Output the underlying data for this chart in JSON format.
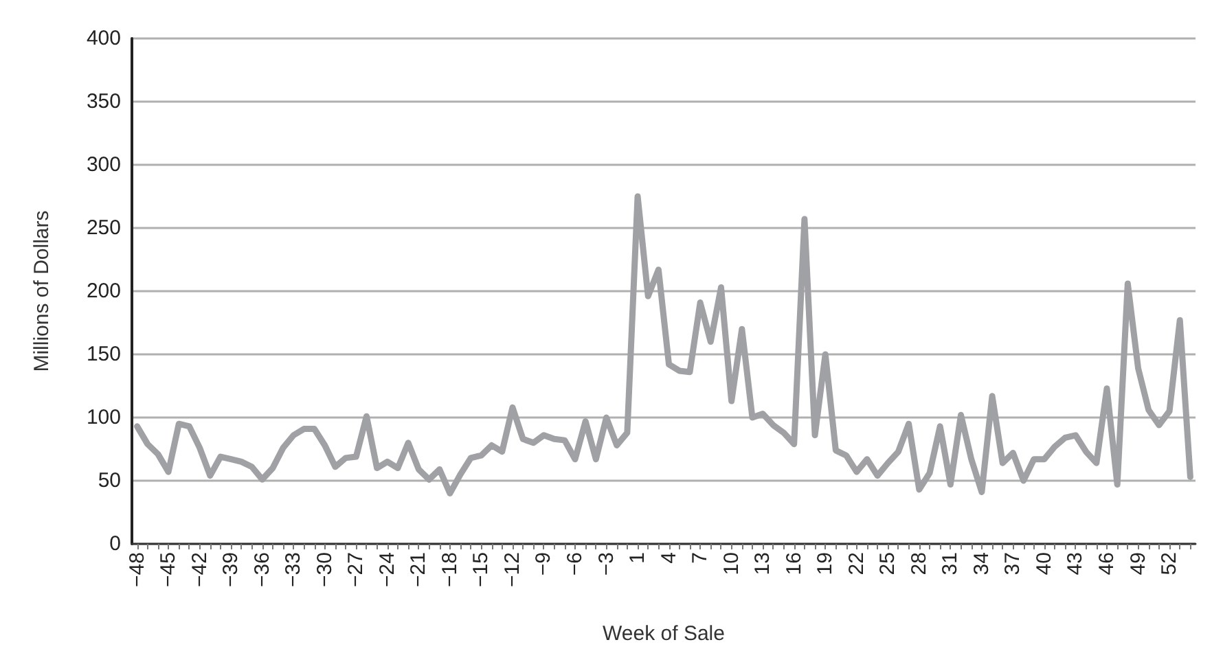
{
  "chart_data": {
    "type": "line",
    "xlabel": "Week of Sale",
    "ylabel": "Millions of Dollars",
    "categories": [
      "−48",
      null,
      null,
      "−45",
      null,
      null,
      "−42",
      null,
      null,
      "−39",
      null,
      null,
      "−36",
      null,
      null,
      "−33",
      null,
      null,
      "−30",
      null,
      null,
      "−27",
      null,
      null,
      "−24",
      null,
      null,
      "−21",
      null,
      null,
      "−18",
      null,
      null,
      "−15",
      null,
      null,
      "−12",
      null,
      null,
      "−9",
      null,
      null,
      "−6",
      null,
      null,
      "−3",
      null,
      null,
      "1",
      null,
      null,
      "4",
      null,
      null,
      "7",
      null,
      null,
      "10",
      null,
      null,
      "13",
      null,
      null,
      "16",
      null,
      null,
      "19",
      null,
      null,
      "22",
      null,
      null,
      "25",
      null,
      null,
      "28",
      null,
      null,
      "31",
      null,
      null,
      "34",
      null,
      null,
      "37",
      null,
      null,
      "40",
      null,
      null,
      "43",
      null,
      null,
      "46",
      null,
      null,
      "49",
      null,
      null,
      "52",
      null,
      null
    ],
    "series": [
      {
        "color": "#a0a1a4",
        "values": [
          93,
          79,
          71,
          57,
          95,
          93,
          76,
          54,
          69,
          67,
          65,
          61,
          51,
          60,
          76,
          86,
          91,
          91,
          78,
          61,
          68,
          69,
          101,
          60,
          65,
          60,
          80,
          59,
          51,
          59,
          40,
          55,
          68,
          70,
          78,
          73,
          108,
          83,
          80,
          86,
          83,
          82,
          67,
          97,
          67,
          100,
          78,
          88,
          275,
          196,
          217,
          142,
          137,
          136,
          191,
          160,
          203,
          113,
          170,
          100,
          103,
          94,
          88,
          79,
          257,
          86,
          150,
          74,
          70,
          57,
          67,
          54,
          64,
          73,
          95,
          43,
          56,
          93,
          47,
          102,
          67,
          41,
          117,
          64,
          72,
          50,
          67,
          67,
          77,
          84,
          86,
          73,
          64,
          123,
          47,
          206,
          139,
          106,
          94,
          105,
          177,
          53
        ]
      }
    ],
    "ylim": [
      0,
      400
    ],
    "yticks": [
      0,
      50,
      100,
      150,
      200,
      250,
      300,
      350,
      400
    ],
    "grid": "y",
    "marker": "none",
    "line_style": "solid"
  }
}
